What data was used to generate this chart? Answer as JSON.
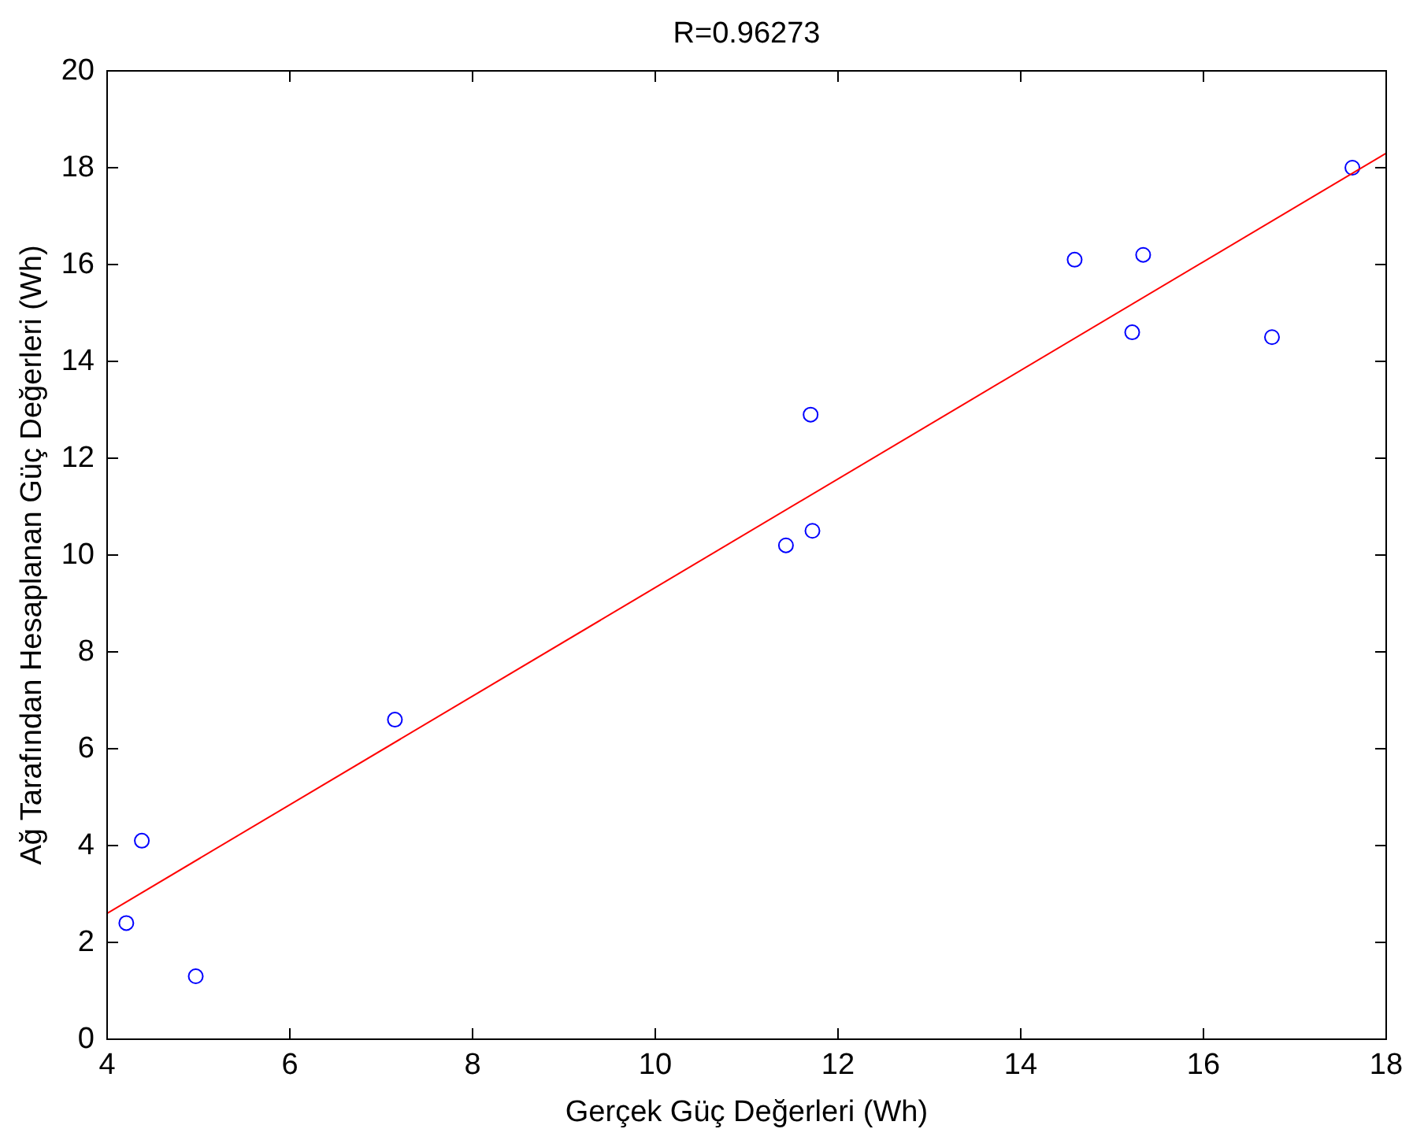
{
  "chart_data": {
    "type": "scatter",
    "title": "R=0.96273",
    "xlabel": "Gerçek Güç Değerleri (Wh)",
    "ylabel": "Ağ Tarafından Hesaplanan Güç Değerleri (Wh)",
    "xlim": [
      4,
      18
    ],
    "xticks": [
      4,
      6,
      8,
      10,
      12,
      14,
      16,
      18
    ],
    "ylim": [
      0,
      20
    ],
    "yticks": [
      0,
      2,
      4,
      6,
      8,
      10,
      12,
      14,
      16,
      18,
      20
    ],
    "grid": false,
    "series": [
      {
        "color": "#0000ff",
        "marker": "circle",
        "x": [
          4.38,
          4.21,
          4.97,
          7.15,
          11.43,
          11.72,
          11.7,
          14.59,
          15.34,
          15.22,
          16.75,
          17.63
        ],
        "values": [
          4.1,
          2.4,
          1.3,
          6.6,
          10.2,
          10.5,
          12.9,
          16.1,
          16.2,
          14.6,
          14.5,
          18.0
        ]
      },
      {
        "type": "line",
        "color": "#ff0000",
        "marker": "none",
        "line_style": "solid",
        "x": [
          4,
          18
        ],
        "values": [
          2.6,
          18.3
        ]
      }
    ]
  }
}
